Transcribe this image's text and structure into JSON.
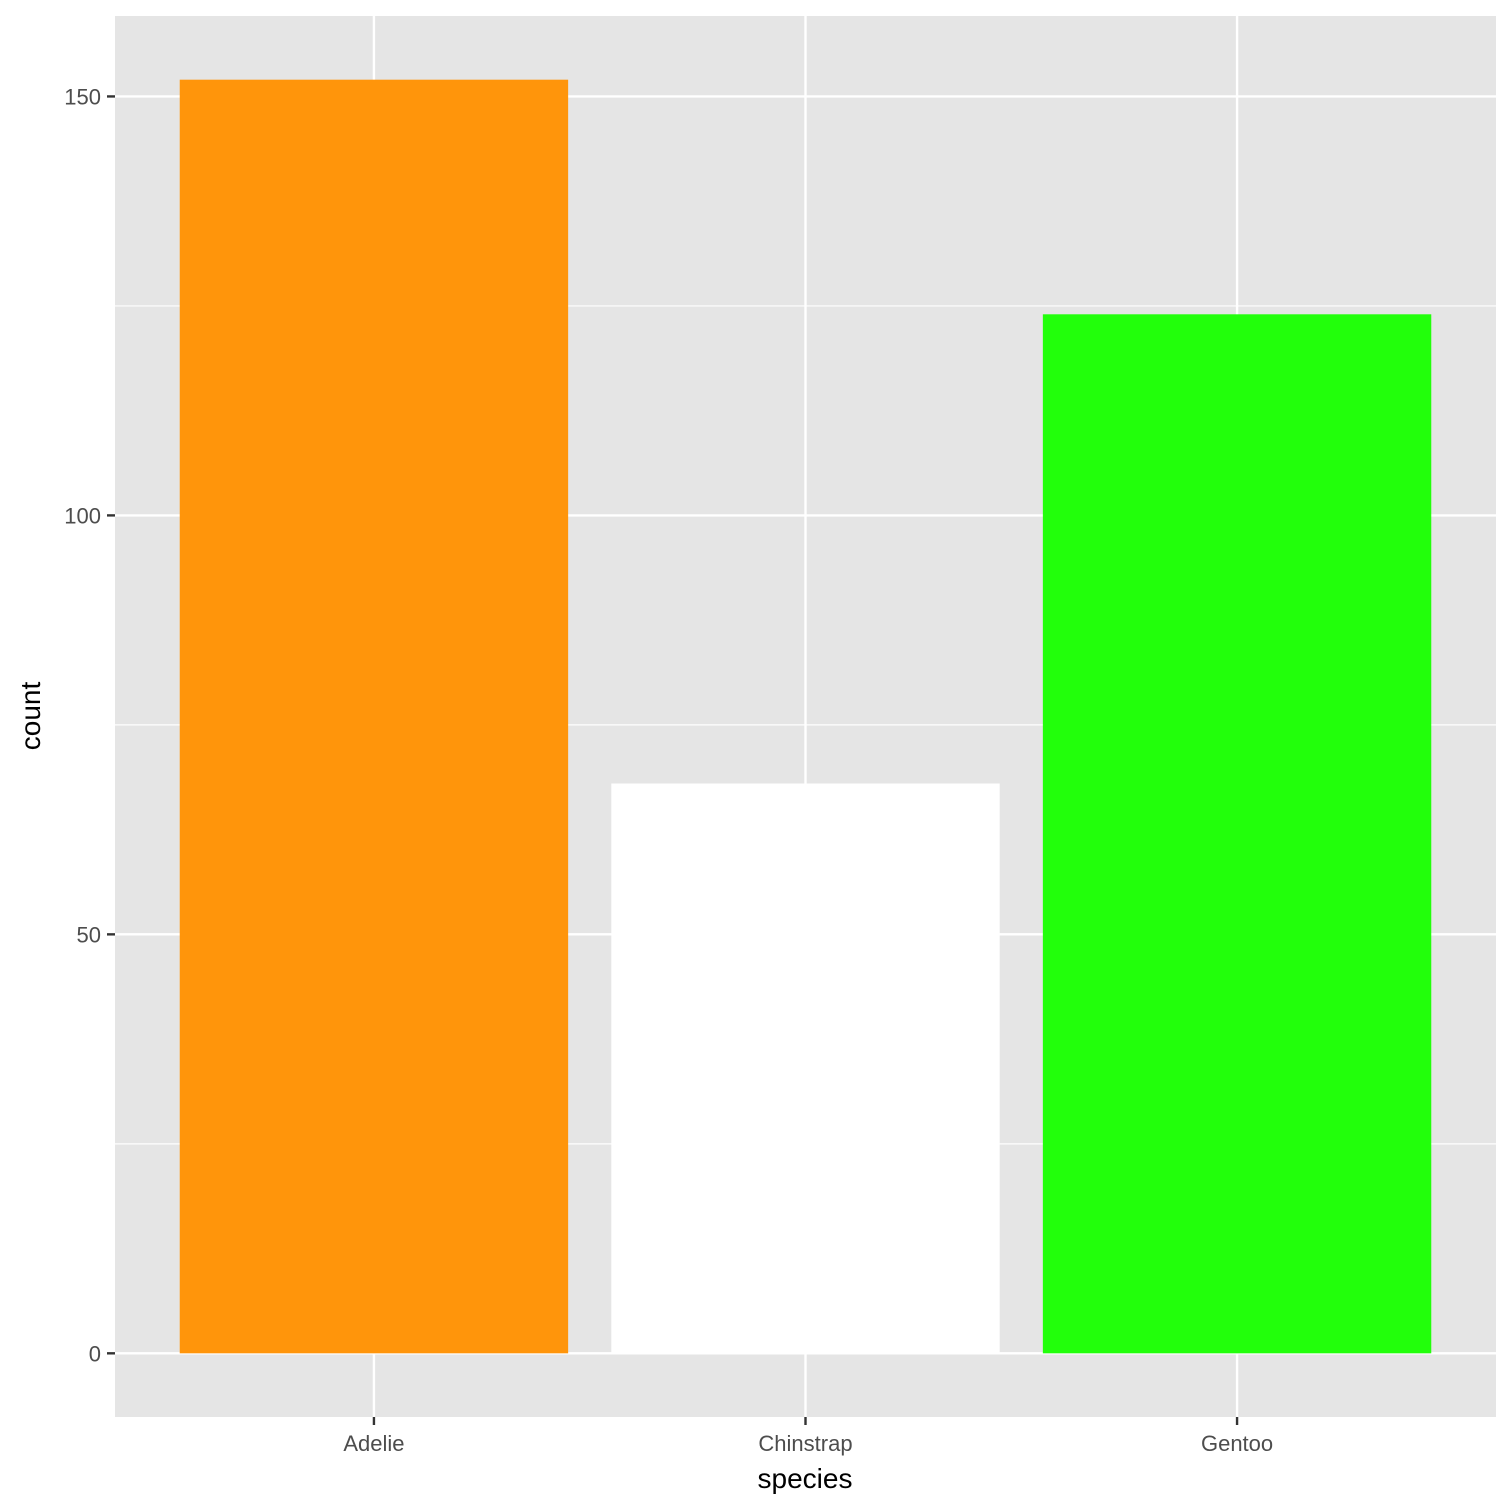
{
  "chart_data": {
    "type": "bar",
    "title": "",
    "xlabel": "species",
    "ylabel": "count",
    "categories": [
      "Adelie",
      "Chinstrap",
      "Gentoo"
    ],
    "values": [
      152,
      68,
      124
    ],
    "colors": [
      "#FF950B",
      "#FFFFFF",
      "#22FF0B"
    ],
    "ylim": [
      -7.6,
      159.6
    ],
    "yticks": [
      0,
      50,
      100,
      150
    ],
    "grid": true,
    "panel_background": "#E5E5E5",
    "gridline_color": "#FFFFFF"
  }
}
